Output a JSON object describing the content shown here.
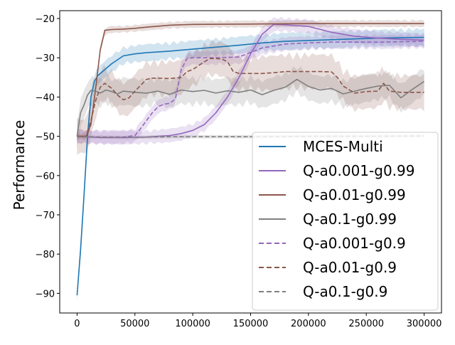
{
  "chart_data": {
    "type": "line",
    "title": "",
    "xlabel": "",
    "ylabel": "Performance",
    "xlim": [
      -15000,
      315000
    ],
    "ylim": [
      -95,
      -18
    ],
    "xticks": [
      0,
      50000,
      100000,
      150000,
      200000,
      250000,
      300000
    ],
    "xtick_labels": [
      "0",
      "50000",
      "100000",
      "150000",
      "200000",
      "250000",
      "300000"
    ],
    "yticks": [
      -90,
      -80,
      -70,
      -60,
      -50,
      -40,
      -30,
      -20
    ],
    "ytick_labels": [
      "−90",
      "−80",
      "−70",
      "−60",
      "−50",
      "−40",
      "−30",
      "−20"
    ],
    "grid": false,
    "legend_position": "lower-right",
    "series": [
      {
        "name": "MCES-Multi",
        "color": "#1f77b4",
        "dash": "solid",
        "band": 2.5,
        "x": [
          0,
          3000,
          6000,
          9000,
          12000,
          15000,
          18000,
          22000,
          26000,
          30000,
          35000,
          40000,
          50000,
          60000,
          80000,
          100000,
          120000,
          140000,
          160000,
          180000,
          200000,
          220000,
          240000,
          260000,
          280000,
          300000
        ],
        "y": [
          -90.5,
          -79,
          -65,
          -50,
          -40,
          -36,
          -34.5,
          -33.5,
          -32.5,
          -31.5,
          -30.5,
          -29.5,
          -29,
          -28.7,
          -28.3,
          -27.8,
          -27.3,
          -26.8,
          -26.2,
          -25.8,
          -25.6,
          -25.4,
          -25.2,
          -25,
          -24.9,
          -24.8
        ]
      },
      {
        "name": "Q-a0.001-g0.99",
        "color": "#9467bd",
        "dash": "solid",
        "band": 2,
        "x": [
          0,
          20000,
          40000,
          60000,
          80000,
          90000,
          100000,
          110000,
          120000,
          130000,
          140000,
          150000,
          160000,
          170000,
          180000,
          190000,
          200000,
          220000,
          240000,
          260000,
          280000,
          300000
        ],
        "y": [
          -50,
          -50.3,
          -50.3,
          -50.2,
          -49.8,
          -49.3,
          -48.5,
          -47,
          -44,
          -40,
          -35,
          -29,
          -24,
          -21.5,
          -21.6,
          -21.8,
          -22,
          -23.5,
          -24.5,
          -25,
          -25.3,
          -25.5
        ]
      },
      {
        "name": "Q-a0.01-g0.99",
        "color": "#8c564b",
        "dash": "solid",
        "band": 1,
        "x": [
          0,
          8000,
          12000,
          16000,
          20000,
          24000,
          30000,
          40000,
          50000,
          60000,
          80000,
          100000,
          150000,
          200000,
          250000,
          300000
        ],
        "y": [
          -50,
          -50,
          -47,
          -38,
          -28,
          -23,
          -22.8,
          -22.7,
          -22.5,
          -22.2,
          -21.7,
          -21.5,
          -21.4,
          -21.3,
          -21.3,
          -21.3
        ]
      },
      {
        "name": "Q-a0.1-g0.99",
        "color": "#7f7f7f",
        "dash": "solid",
        "band": 4,
        "x": [
          0,
          3000,
          6000,
          9000,
          12000,
          16000,
          20000,
          25000,
          30000,
          35000,
          40000,
          50000,
          60000,
          70000,
          80000,
          90000,
          100000,
          110000,
          120000,
          130000,
          140000,
          150000,
          160000,
          170000,
          180000,
          190000,
          200000,
          210000,
          220000,
          230000,
          240000,
          250000,
          260000,
          270000,
          280000,
          290000,
          300000
        ],
        "y": [
          -50,
          -44,
          -42,
          -39.5,
          -38.3,
          -38.5,
          -39,
          -38.2,
          -38.6,
          -39.2,
          -38.5,
          -38.8,
          -39,
          -38.5,
          -39.3,
          -38.2,
          -38.6,
          -38.3,
          -39,
          -38.4,
          -38.8,
          -38.2,
          -39.4,
          -38.3,
          -37.5,
          -35.5,
          -37.3,
          -38.2,
          -37.8,
          -39.2,
          -38.5,
          -37.8,
          -37.2,
          -37,
          -40.2,
          -38,
          -36
        ]
      },
      {
        "name": "Q-a0.001-g0.9",
        "color": "#9467bd",
        "dash": "dashed",
        "band": 2,
        "x": [
          0,
          20000,
          40000,
          50000,
          55000,
          60000,
          65000,
          70000,
          75000,
          80000,
          85000,
          90000,
          95000,
          100000,
          110000,
          120000,
          140000,
          160000,
          180000,
          200000,
          220000,
          240000,
          260000,
          280000,
          300000
        ],
        "y": [
          -50,
          -50.2,
          -50.2,
          -49.8,
          -48,
          -46,
          -44,
          -42.5,
          -41.8,
          -41.6,
          -40.5,
          -33,
          -30.2,
          -30,
          -30,
          -30,
          -29.8,
          -27.5,
          -26.5,
          -26.2,
          -26,
          -26,
          -26,
          -25.9,
          -25.8
        ]
      },
      {
        "name": "Q-a0.01-g0.9",
        "color": "#8c564b",
        "dash": "dashed",
        "band": 5,
        "x": [
          0,
          8000,
          12000,
          16000,
          20000,
          24000,
          30000,
          35000,
          40000,
          45000,
          50000,
          55000,
          60000,
          65000,
          70000,
          80000,
          90000,
          95000,
          100000,
          110000,
          115000,
          120000,
          125000,
          130000,
          135000,
          140000,
          150000,
          160000,
          170000,
          180000,
          190000,
          200000,
          210000,
          220000,
          225000,
          230000,
          240000,
          250000,
          260000,
          265000,
          270000,
          280000,
          290000,
          300000
        ],
        "y": [
          -50,
          -50,
          -46,
          -41,
          -37.5,
          -36.5,
          -37.8,
          -39.5,
          -40.7,
          -40.2,
          -38.5,
          -37,
          -35.5,
          -35.2,
          -35.2,
          -35.3,
          -35,
          -33.5,
          -33,
          -31,
          -30.2,
          -30.2,
          -30.3,
          -31,
          -33.5,
          -34,
          -34,
          -34,
          -33.8,
          -33.5,
          -33.5,
          -33.5,
          -33.5,
          -33.6,
          -35,
          -37.2,
          -39,
          -38.6,
          -38.5,
          -36.5,
          -38.5,
          -38.8,
          -38.8,
          -38.8
        ]
      },
      {
        "name": "Q-a0.1-g0.9",
        "color": "#7f7f7f",
        "dash": "dashed",
        "band": 0.5,
        "x": [
          0,
          20000,
          40000,
          60000,
          80000,
          100000,
          150000,
          200000,
          250000,
          300000
        ],
        "y": [
          -50.1,
          -50.2,
          -50.3,
          -50.2,
          -50.1,
          -50.1,
          -50.1,
          -50,
          -50,
          -49.9
        ]
      }
    ]
  }
}
